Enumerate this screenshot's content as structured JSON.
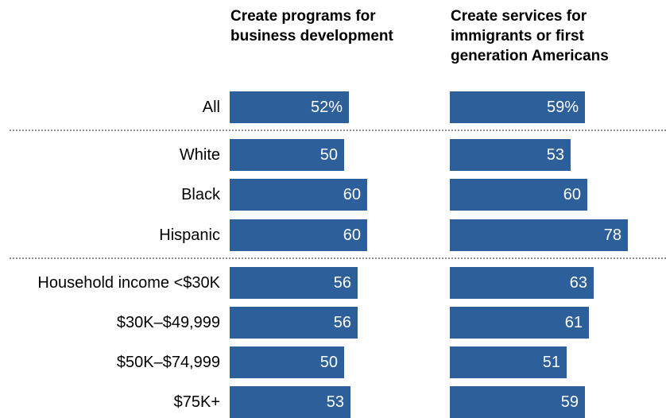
{
  "chart_data": {
    "type": "bar",
    "orientation": "horizontal",
    "categories": [
      "All",
      "White",
      "Black",
      "Hispanic",
      "Household income <$30K",
      "$30K–$49,999",
      "$50K–$74,999",
      "$75K+"
    ],
    "series": [
      {
        "name": "Create programs for\nbusiness development",
        "values": [
          52,
          50,
          60,
          60,
          56,
          56,
          50,
          53
        ],
        "labels": [
          "52%",
          "50",
          "60",
          "60",
          "56",
          "56",
          "50",
          "53"
        ]
      },
      {
        "name": "Create services for\nimmigrants or first\ngeneration Americans",
        "values": [
          59,
          53,
          60,
          78,
          63,
          61,
          51,
          59
        ],
        "labels": [
          "59%",
          "53",
          "60",
          "78",
          "63",
          "61",
          "51",
          "59"
        ]
      }
    ],
    "xlim": [
      0,
      100
    ],
    "groups": [
      [
        0
      ],
      [
        1,
        2,
        3
      ],
      [
        4,
        5,
        6,
        7
      ]
    ],
    "grid": false,
    "legend": "none",
    "bar_color": "#2d5f9b",
    "value_label_color": "#ffffff",
    "divider_color": "#8c8c8c"
  }
}
